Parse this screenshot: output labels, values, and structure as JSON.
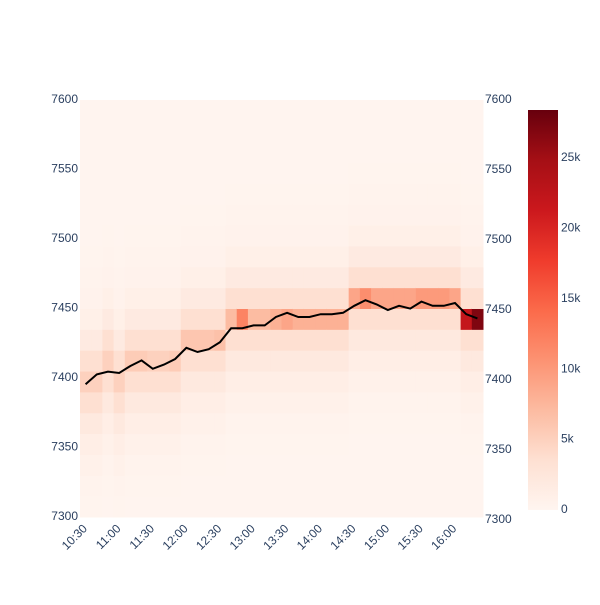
{
  "chart_data": {
    "type": "heatmap",
    "x": [
      "10:30",
      "10:40",
      "10:50",
      "11:00",
      "11:10",
      "11:20",
      "11:30",
      "11:40",
      "11:50",
      "12:00",
      "12:10",
      "12:20",
      "12:30",
      "12:40",
      "12:50",
      "13:00",
      "13:10",
      "13:20",
      "13:30",
      "13:40",
      "13:50",
      "14:00",
      "14:10",
      "14:20",
      "14:30",
      "14:40",
      "14:50",
      "15:00",
      "15:10",
      "15:20",
      "15:30",
      "15:40",
      "15:50",
      "16:00",
      "16:10",
      "16:20"
    ],
    "xlim": [
      "10:25",
      "16:25"
    ],
    "xticks": [
      "10:30",
      "11:00",
      "11:30",
      "12:00",
      "12:30",
      "13:00",
      "13:30",
      "14:00",
      "14:30",
      "15:00",
      "15:30",
      "16:00"
    ],
    "ylim": [
      7300,
      7600
    ],
    "yticks": [
      7300,
      7350,
      7400,
      7450,
      7500,
      7550,
      7600
    ],
    "y2lim": [
      7300,
      7600
    ],
    "y2ticks": [
      7300,
      7350,
      7400,
      7450,
      7500,
      7550,
      7600
    ],
    "y_bins": [
      7300,
      7315,
      7330,
      7345,
      7360,
      7375,
      7390,
      7405,
      7420,
      7435,
      7450,
      7465,
      7480,
      7495,
      7510,
      7525,
      7540,
      7555,
      7570,
      7585,
      7600
    ],
    "z": [
      [
        250,
        400,
        700,
        1200,
        2000,
        3500,
        5000,
        3500,
        1800,
        900,
        500,
        300,
        200,
        120,
        120,
        120,
        120,
        120,
        120,
        120
      ],
      [
        250,
        400,
        700,
        1200,
        2000,
        3500,
        5000,
        3500,
        1800,
        900,
        500,
        300,
        200,
        120,
        120,
        120,
        120,
        120,
        120,
        120
      ],
      [
        150,
        250,
        400,
        700,
        1200,
        2000,
        3500,
        5000,
        3500,
        1800,
        900,
        500,
        300,
        200,
        120,
        120,
        120,
        120,
        120,
        120
      ],
      [
        250,
        400,
        700,
        1200,
        2000,
        3500,
        5000,
        3500,
        1800,
        900,
        500,
        300,
        200,
        120,
        120,
        120,
        120,
        120,
        120,
        120
      ],
      [
        150,
        250,
        400,
        700,
        1200,
        2000,
        3500,
        5500,
        3500,
        1800,
        900,
        500,
        300,
        200,
        120,
        120,
        120,
        120,
        120,
        120
      ],
      [
        150,
        250,
        400,
        700,
        1200,
        2000,
        3500,
        5500,
        3500,
        1800,
        900,
        500,
        300,
        200,
        120,
        120,
        120,
        120,
        120,
        120
      ],
      [
        150,
        250,
        400,
        700,
        1200,
        2000,
        3500,
        5000,
        3500,
        1800,
        900,
        500,
        300,
        200,
        120,
        120,
        120,
        120,
        120,
        120
      ],
      [
        150,
        250,
        400,
        700,
        1200,
        2000,
        3500,
        5000,
        3500,
        1800,
        900,
        500,
        300,
        200,
        120,
        120,
        120,
        120,
        120,
        120
      ],
      [
        150,
        250,
        400,
        700,
        1200,
        2000,
        3500,
        5500,
        3500,
        1800,
        900,
        500,
        300,
        200,
        120,
        120,
        120,
        120,
        120,
        120
      ],
      [
        150,
        150,
        250,
        400,
        700,
        1200,
        2000,
        3500,
        6000,
        3500,
        1800,
        900,
        500,
        300,
        200,
        120,
        120,
        120,
        120,
        120
      ],
      [
        150,
        150,
        250,
        400,
        700,
        1200,
        2000,
        3500,
        6000,
        3500,
        1800,
        900,
        500,
        300,
        200,
        120,
        120,
        120,
        120,
        120
      ],
      [
        150,
        150,
        250,
        400,
        700,
        1200,
        2000,
        3500,
        6000,
        3500,
        1800,
        900,
        500,
        300,
        200,
        120,
        120,
        120,
        120,
        120
      ],
      [
        150,
        150,
        250,
        400,
        700,
        1200,
        2000,
        3500,
        6500,
        3500,
        1800,
        900,
        500,
        300,
        200,
        120,
        120,
        120,
        120,
        120
      ],
      [
        150,
        150,
        150,
        250,
        400,
        700,
        1200,
        2000,
        3500,
        7000,
        3500,
        1800,
        900,
        500,
        300,
        200,
        120,
        120,
        120,
        120
      ],
      [
        150,
        150,
        150,
        250,
        400,
        700,
        1200,
        2000,
        3500,
        12000,
        3500,
        1800,
        900,
        500,
        300,
        200,
        120,
        120,
        120,
        120
      ],
      [
        150,
        150,
        150,
        250,
        400,
        700,
        1200,
        2000,
        3500,
        7000,
        3500,
        1800,
        900,
        500,
        300,
        200,
        120,
        120,
        120,
        120
      ],
      [
        150,
        150,
        150,
        250,
        400,
        700,
        1200,
        2000,
        3500,
        7000,
        3500,
        1800,
        900,
        500,
        300,
        200,
        120,
        120,
        120,
        120
      ],
      [
        150,
        150,
        150,
        250,
        400,
        700,
        1200,
        2000,
        3500,
        8000,
        3500,
        1800,
        900,
        500,
        300,
        200,
        120,
        120,
        120,
        120
      ],
      [
        150,
        150,
        150,
        250,
        400,
        700,
        1200,
        2000,
        3500,
        9000,
        3500,
        1800,
        900,
        500,
        300,
        200,
        120,
        120,
        120,
        120
      ],
      [
        150,
        150,
        150,
        250,
        400,
        700,
        1200,
        2000,
        3500,
        8000,
        3500,
        1800,
        900,
        500,
        300,
        200,
        120,
        120,
        120,
        120
      ],
      [
        150,
        150,
        150,
        250,
        400,
        700,
        1200,
        2000,
        3500,
        8000,
        3500,
        1800,
        900,
        500,
        300,
        200,
        120,
        120,
        120,
        120
      ],
      [
        150,
        150,
        150,
        250,
        400,
        700,
        1200,
        2000,
        3500,
        8000,
        3500,
        1800,
        900,
        500,
        300,
        200,
        120,
        120,
        120,
        120
      ],
      [
        150,
        150,
        150,
        250,
        400,
        700,
        1200,
        2000,
        3500,
        8000,
        3500,
        1800,
        900,
        500,
        300,
        200,
        120,
        120,
        120,
        120
      ],
      [
        150,
        150,
        150,
        250,
        400,
        700,
        1200,
        2000,
        3500,
        8000,
        3500,
        1800,
        900,
        500,
        300,
        200,
        120,
        120,
        120,
        120
      ],
      [
        150,
        150,
        150,
        150,
        250,
        400,
        700,
        1200,
        2000,
        3500,
        9000,
        3500,
        1800,
        900,
        500,
        300,
        200,
        120,
        120,
        120
      ],
      [
        150,
        150,
        150,
        150,
        250,
        400,
        700,
        1200,
        2000,
        3500,
        11000,
        3500,
        1800,
        900,
        500,
        300,
        200,
        120,
        120,
        120
      ],
      [
        150,
        150,
        150,
        150,
        250,
        400,
        700,
        1200,
        2000,
        3500,
        9000,
        3500,
        1800,
        900,
        500,
        300,
        200,
        120,
        120,
        120
      ],
      [
        150,
        150,
        150,
        150,
        250,
        400,
        700,
        1200,
        2000,
        3500,
        9000,
        3500,
        1800,
        900,
        500,
        300,
        200,
        120,
        120,
        120
      ],
      [
        150,
        150,
        150,
        150,
        250,
        400,
        700,
        1200,
        2000,
        3500,
        9000,
        3500,
        1800,
        900,
        500,
        300,
        200,
        120,
        120,
        120
      ],
      [
        150,
        150,
        150,
        150,
        250,
        400,
        700,
        1200,
        2000,
        3500,
        9000,
        3500,
        1800,
        900,
        500,
        300,
        200,
        120,
        120,
        120
      ],
      [
        150,
        150,
        150,
        150,
        250,
        400,
        700,
        1200,
        2000,
        3500,
        10000,
        3500,
        1800,
        900,
        500,
        300,
        200,
        120,
        120,
        120
      ],
      [
        150,
        150,
        150,
        150,
        250,
        400,
        700,
        1200,
        2000,
        3500,
        10000,
        3500,
        1800,
        900,
        500,
        300,
        200,
        120,
        120,
        120
      ],
      [
        150,
        150,
        150,
        150,
        250,
        400,
        700,
        1200,
        2000,
        3500,
        10000,
        3500,
        1800,
        900,
        500,
        300,
        200,
        120,
        120,
        120
      ],
      [
        150,
        150,
        150,
        150,
        250,
        400,
        700,
        1200,
        2000,
        3500,
        9000,
        3500,
        1800,
        900,
        500,
        300,
        200,
        120,
        120,
        120
      ],
      [
        150,
        150,
        150,
        250,
        400,
        700,
        1200,
        2000,
        3500,
        22000,
        3500,
        1800,
        900,
        500,
        300,
        200,
        120,
        120,
        120,
        120
      ],
      [
        150,
        150,
        150,
        250,
        400,
        700,
        1200,
        2000,
        3500,
        27000,
        3500,
        1800,
        900,
        500,
        300,
        200,
        120,
        120,
        120,
        120
      ]
    ],
    "zlim": [
      0,
      28400
    ],
    "colorscale": [
      "#fff5f0",
      "#fee0d2",
      "#fcbba1",
      "#fc9272",
      "#fb6a4a",
      "#ef3b2c",
      "#cb181d",
      "#a50f15",
      "#67000d"
    ],
    "colorbar_ticks": [
      0,
      {
        "value": 5000,
        "label": "5k"
      },
      {
        "value": 10000,
        "label": "10k"
      },
      {
        "value": 15000,
        "label": "15k"
      },
      {
        "value": 20000,
        "label": "20k"
      },
      {
        "value": 25000,
        "label": "25k"
      }
    ],
    "line": {
      "color": "#000000",
      "axis": "y2",
      "values": [
        7397,
        7404,
        7406,
        7405,
        7410,
        7414,
        7408,
        7411,
        7415,
        7423,
        7420,
        7422,
        7427,
        7437,
        7437,
        7439,
        7439,
        7445,
        7448,
        7445,
        7445,
        7447,
        7447,
        7448,
        7453,
        7457,
        7454,
        7450,
        7453,
        7451,
        7456,
        7453,
        7453,
        7455,
        7447,
        7444
      ]
    }
  }
}
